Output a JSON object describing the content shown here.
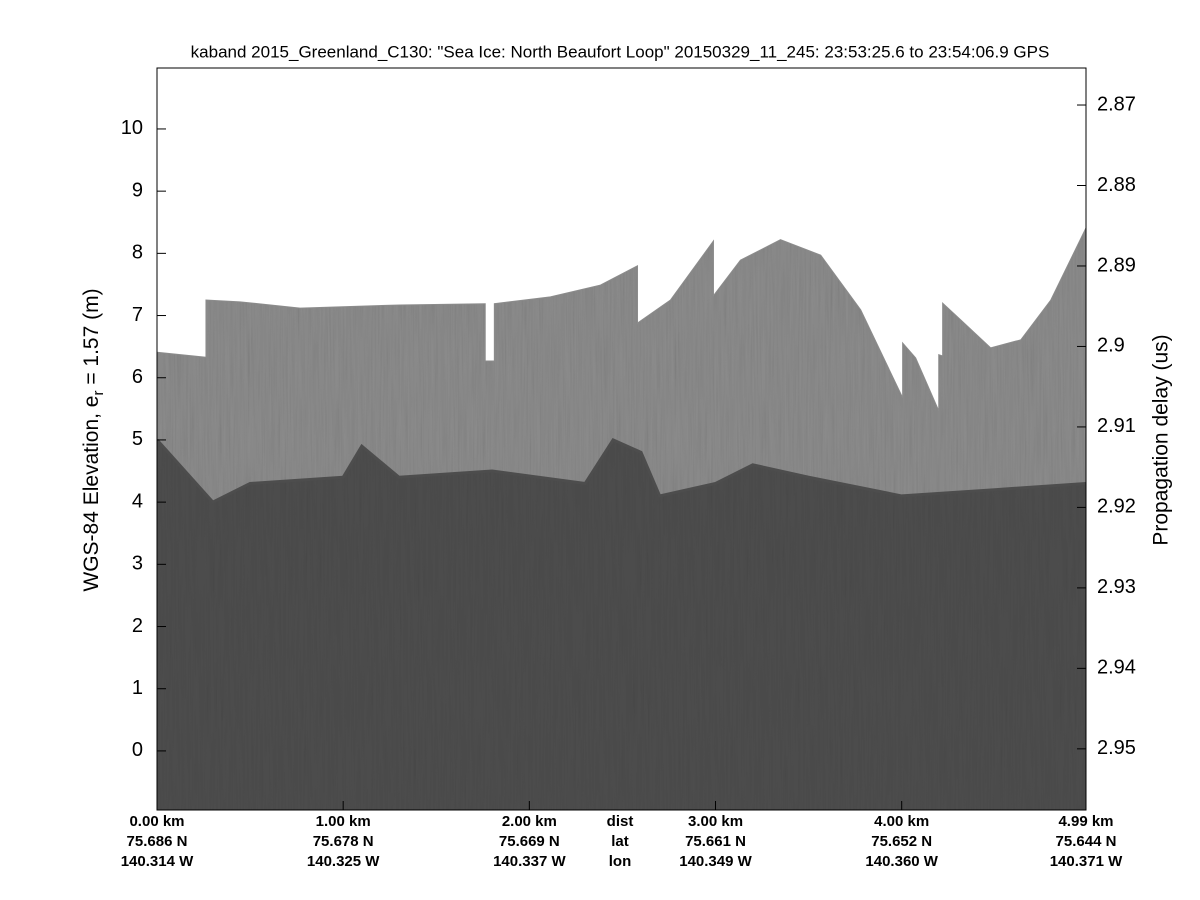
{
  "chart_data": {
    "type": "echogram",
    "title": "kaband 2015_Greenland_C130: \"Sea Ice: North Beaufort Loop\"  20150329_11_245: 23:53:25.6 to 23:54:06.9 GPS",
    "ylabel": {
      "text": "WGS-84 Elevation, e",
      "sub": "r",
      "rest": " = 1.57 (m)"
    },
    "y2label": "Propagation delay (us)",
    "xlim": [
      0,
      4.99
    ],
    "xticks": [
      {
        "value": 0,
        "label": "0.00 km"
      },
      {
        "value": 1,
        "label": "1.00 km"
      },
      {
        "value": 2,
        "label": "2.00 km"
      },
      {
        "value": 3,
        "label": "3.00 km"
      },
      {
        "value": 4,
        "label": "4.00 km"
      },
      {
        "value": 4.99,
        "label": "4.99 km"
      }
    ],
    "lat_labels": [
      "75.686 N",
      "75.678 N",
      "75.669 N",
      "75.661 N",
      "75.652 N",
      "75.644 N"
    ],
    "lon_labels": [
      "140.314 W",
      "140.325 W",
      "140.337 W",
      "140.349 W",
      "140.360 W",
      "140.371 W"
    ],
    "row_labels": [
      "dist",
      "lat",
      "lon"
    ],
    "ylim": [
      -0.95,
      10.98
    ],
    "yticks": [
      0,
      1,
      2,
      3,
      4,
      5,
      6,
      7,
      8,
      9,
      10
    ],
    "y2lim": [
      2.9576,
      2.8654
    ],
    "y2ticks": [
      2.87,
      2.88,
      2.89,
      2.9,
      2.91,
      2.92,
      2.93,
      2.94,
      2.95
    ],
    "series": [
      {
        "color": "#8c8c8c",
        "x": [
          0,
          0.263,
          0.263,
          0.446,
          0.769,
          1.306,
          1.763,
          1.763,
          1.812,
          1.812,
          2.113,
          2.382,
          2.581,
          2.581,
          2.758,
          2.989,
          2.989,
          3.134,
          3.349,
          3.565,
          3.78,
          4.005,
          4.005,
          4.075,
          4.199,
          4.199,
          4.22,
          4.22,
          4.317,
          4.478,
          4.64,
          4.801,
          4.99
        ],
        "values": [
          6.41,
          6.33,
          7.25,
          7.22,
          7.12,
          7.17,
          7.19,
          6.27,
          6.27,
          7.19,
          7.3,
          7.49,
          7.8,
          6.88,
          7.25,
          8.2,
          7.32,
          7.89,
          8.22,
          7.97,
          7.09,
          5.68,
          6.56,
          6.32,
          5.47,
          6.37,
          6.35,
          7.2,
          6.93,
          6.48,
          6.61,
          7.25,
          8.41
        ]
      },
      {
        "color": "#4d4d4d",
        "x": [
          0,
          0.3,
          0.5,
          1.0,
          1.1,
          1.3,
          1.8,
          2.3,
          2.45,
          2.6,
          2.7,
          3.0,
          3.2,
          3.5,
          4.0,
          4.5,
          4.99
        ],
        "values": [
          5.0,
          4.0,
          4.3,
          4.4,
          4.9,
          4.4,
          4.5,
          4.3,
          5.0,
          4.8,
          4.1,
          4.3,
          4.6,
          4.4,
          4.1,
          4.2,
          4.3
        ]
      }
    ]
  }
}
